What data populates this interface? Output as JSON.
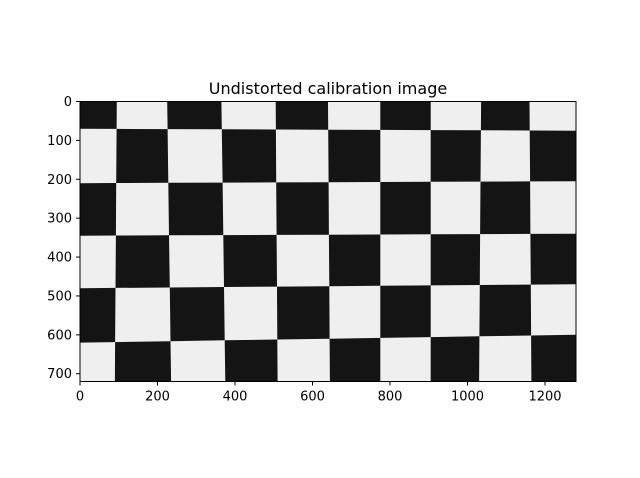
{
  "chart_data": {
    "type": "image",
    "title": "Undistorted calibration image",
    "xlabel": "",
    "ylabel": "",
    "xlim": [
      0,
      1280
    ],
    "ylim": [
      720,
      0
    ],
    "xticks": [
      0,
      200,
      400,
      600,
      800,
      1000,
      1200
    ],
    "yticks": [
      0,
      100,
      200,
      300,
      400,
      500,
      600,
      700
    ],
    "xtick_labels": [
      "0",
      "200",
      "400",
      "600",
      "800",
      "1000",
      "1200"
    ],
    "ytick_labels": [
      "0",
      "100",
      "200",
      "300",
      "400",
      "500",
      "600",
      "700"
    ],
    "grid": false,
    "image": {
      "description_type": "checkerboard",
      "colors": {
        "dark": "#141414",
        "light": "#efefef"
      },
      "vertical_lines": [
        [
          95,
          90
        ],
        [
          225,
          235
        ],
        [
          365,
          375
        ],
        [
          505,
          510
        ],
        [
          640,
          645
        ],
        [
          775,
          775
        ],
        [
          905,
          905
        ],
        [
          1035,
          1030
        ],
        [
          1160,
          1165
        ]
      ],
      "horizontal_lines": [
        [
          70,
          75
        ],
        [
          210,
          205
        ],
        [
          345,
          340
        ],
        [
          480,
          470
        ],
        [
          620,
          600
        ]
      ],
      "top_left_dark": true
    }
  }
}
